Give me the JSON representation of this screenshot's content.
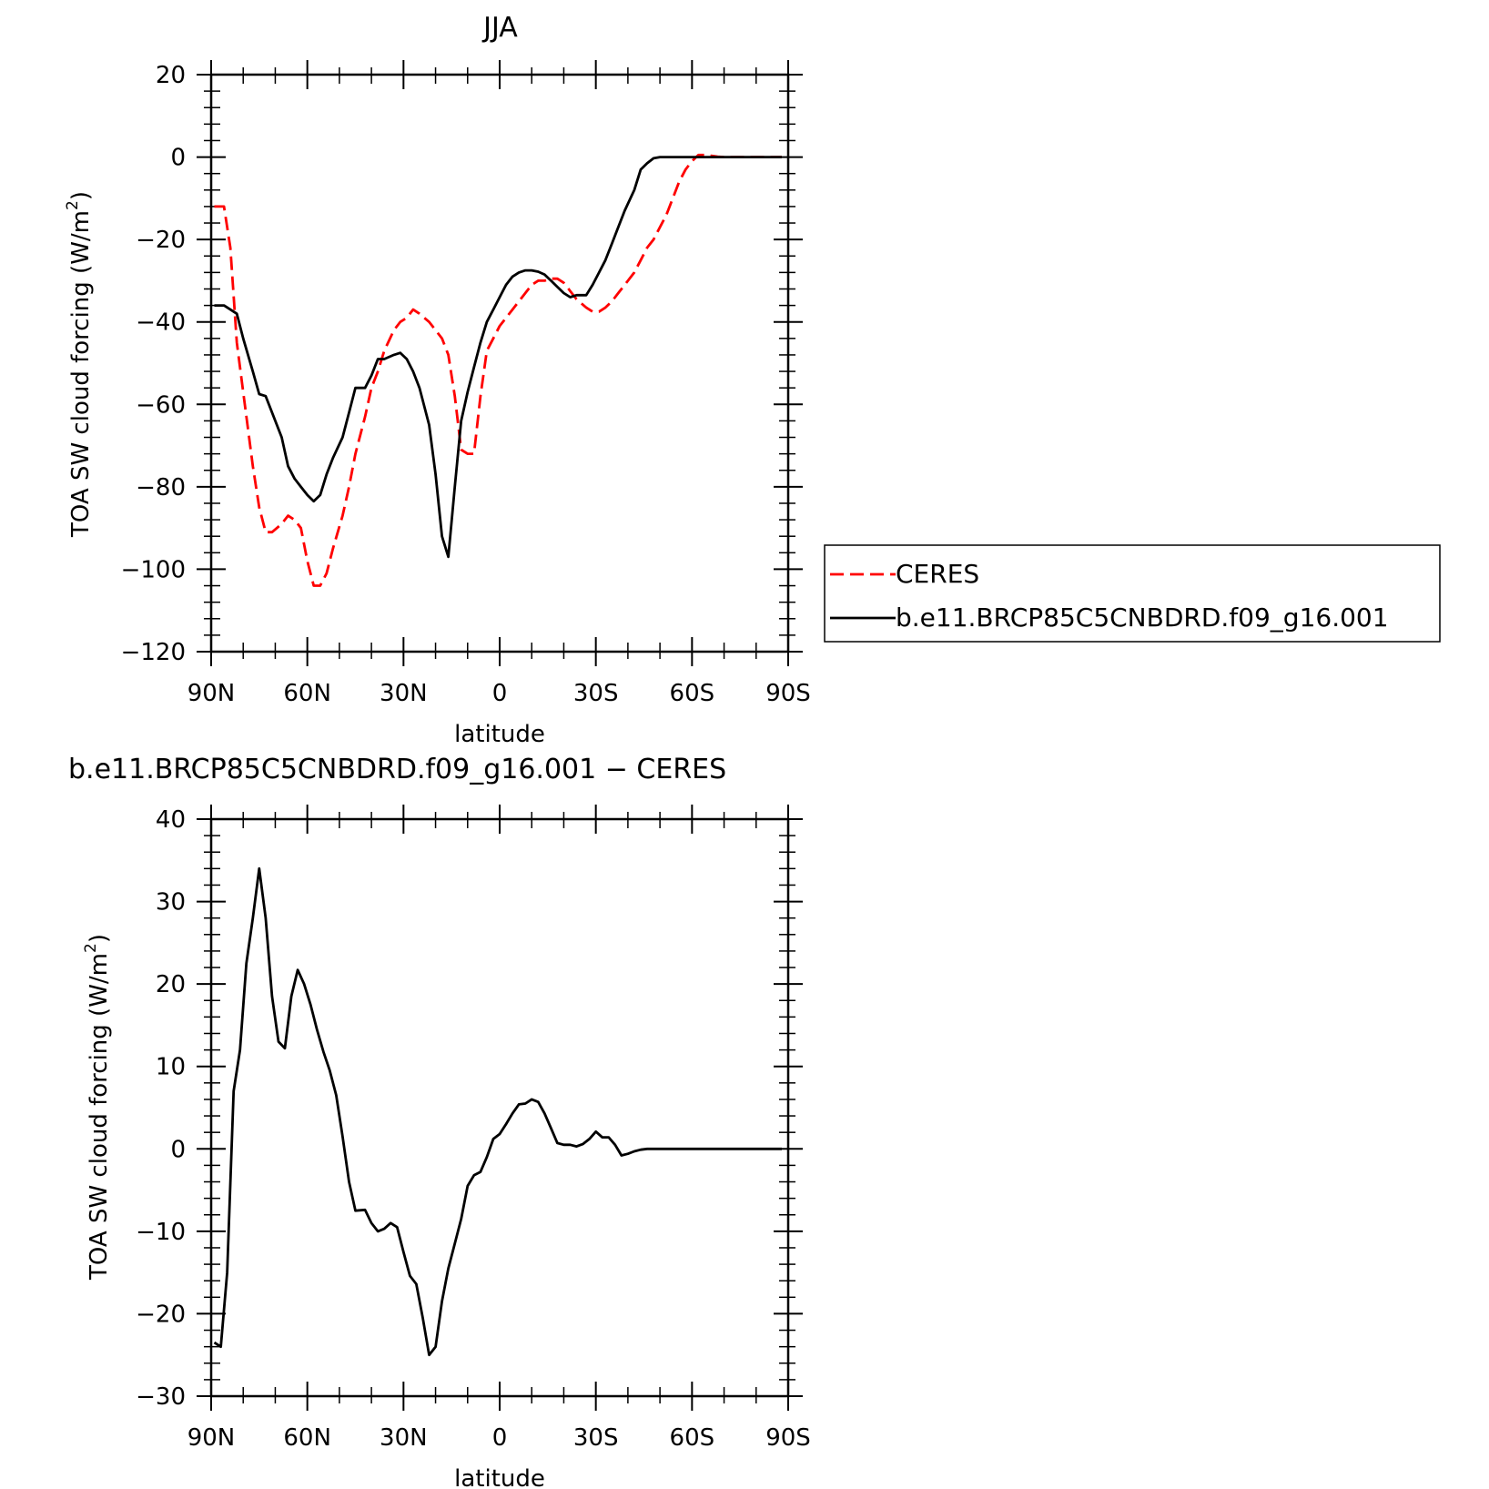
{
  "chart_data": [
    {
      "type": "line",
      "title": "JJA",
      "xlabel": "latitude",
      "ylabel_main": "TOA SW cloud forcing (W/m",
      "ylabel_sup": "2",
      "ylabel_close": ")",
      "ylim": [
        -120,
        20
      ],
      "ytick_step": 20,
      "yticks": [
        "20",
        "0",
        "−20",
        "−40",
        "−60",
        "−80",
        "−100",
        "−120"
      ],
      "xlim": [
        90,
        -90
      ],
      "xticks": [
        {
          "value": 90,
          "label": "90N"
        },
        {
          "value": 60,
          "label": "60N"
        },
        {
          "value": 30,
          "label": "30N"
        },
        {
          "value": 0,
          "label": "0"
        },
        {
          "value": -30,
          "label": "30S"
        },
        {
          "value": -60,
          "label": "60S"
        },
        {
          "value": -90,
          "label": "90S"
        }
      ],
      "legend": {
        "placement": "right-outside"
      },
      "series": [
        {
          "name": "CERES",
          "color": "#ff0000",
          "dash": true,
          "x": [
            89,
            86,
            84,
            82,
            80,
            77,
            75,
            73,
            71,
            68,
            66,
            64,
            62,
            60,
            58,
            56,
            54,
            52,
            49,
            47,
            45,
            42,
            40,
            38,
            36,
            33,
            31,
            29,
            27,
            25,
            22,
            20,
            18,
            16,
            14,
            12,
            10,
            8,
            6,
            4,
            2,
            0,
            -2,
            -4,
            -6,
            -8,
            -10,
            -12,
            -14,
            -16,
            -18,
            -20,
            -22,
            -24,
            -27,
            -29,
            -31,
            -33,
            -35,
            -37,
            -39,
            -42,
            -44,
            -46,
            -48,
            -50,
            -52,
            -54,
            -56,
            -58,
            -60,
            -62,
            -64,
            -66,
            -68,
            -70,
            -72,
            -74,
            -76,
            -78,
            -80,
            -82,
            -84,
            -86,
            -88
          ],
          "y": [
            -12,
            -12,
            -22,
            -45,
            -57,
            -75,
            -85,
            -91,
            -91,
            -89,
            -87,
            -88,
            -90,
            -98,
            -104,
            -104,
            -101,
            -95,
            -87,
            -80,
            -72,
            -63,
            -56,
            -52,
            -47,
            -42,
            -40,
            -39,
            -37,
            -38,
            -40,
            -42,
            -44,
            -48,
            -58,
            -71,
            -72,
            -72,
            -58,
            -47,
            -44,
            -41,
            -39,
            -37,
            -35,
            -33,
            -31,
            -30,
            -30,
            -29.5,
            -29.5,
            -30.5,
            -32.5,
            -34.5,
            -36.5,
            -37.5,
            -37.5,
            -36.5,
            -35,
            -33,
            -31,
            -28,
            -25,
            -22,
            -20,
            -17,
            -14,
            -10,
            -6,
            -3,
            -1,
            0.5,
            0.5,
            0.3,
            0.1,
            0,
            0,
            0,
            0,
            0,
            0,
            0,
            0,
            0,
            0
          ]
        },
        {
          "name": "b.e11.BRCP85C5CNBDRD.f09_g16.001",
          "color": "#000000",
          "dash": false,
          "x": [
            89,
            86,
            84,
            82,
            80,
            77,
            75,
            73,
            71,
            68,
            66,
            64,
            62,
            60,
            58,
            56,
            54,
            52,
            49,
            47,
            45,
            42,
            40,
            38,
            36,
            33,
            31,
            29,
            27,
            25,
            22,
            20,
            18,
            16,
            14,
            12,
            10,
            8,
            6,
            4,
            2,
            0,
            -2,
            -4,
            -6,
            -8,
            -10,
            -12,
            -14,
            -16,
            -18,
            -20,
            -22,
            -24,
            -27,
            -29,
            -31,
            -33,
            -35,
            -37,
            -39,
            -42,
            -44,
            -46,
            -48,
            -50,
            -52,
            -54,
            -56,
            -58,
            -60,
            -62,
            -64,
            -66,
            -68,
            -70,
            -72,
            -74,
            -76,
            -78,
            -80,
            -82,
            -84,
            -86,
            -88
          ],
          "y": [
            -36,
            -36,
            -37,
            -38,
            -44,
            -52,
            -57.5,
            -58,
            -62,
            -68,
            -75,
            -78,
            -80,
            -82,
            -83.5,
            -82,
            -77,
            -73,
            -68,
            -62,
            -56,
            -56,
            -53,
            -49,
            -49,
            -48,
            -47.5,
            -49,
            -52,
            -56,
            -65,
            -77,
            -92,
            -97,
            -80,
            -64,
            -57,
            -51,
            -45,
            -40,
            -37,
            -34,
            -31,
            -29,
            -28,
            -27.5,
            -27.5,
            -27.8,
            -28.5,
            -30,
            -31.5,
            -33,
            -34,
            -33.5,
            -33.5,
            -31,
            -28,
            -25,
            -21,
            -17,
            -13,
            -8,
            -3,
            -1.5,
            -0.3,
            0,
            0,
            0,
            0,
            0,
            0,
            0,
            0,
            0,
            0,
            0,
            0,
            0,
            0,
            0,
            0,
            0,
            0,
            0,
            0
          ]
        }
      ]
    },
    {
      "type": "line",
      "title": "b.e11.BRCP85C5CNBDRD.f09_g16.001 − CERES",
      "xlabel": "latitude",
      "ylabel_main": "TOA SW cloud forcing (W/m",
      "ylabel_sup": "2",
      "ylabel_close": ")",
      "ylim": [
        -30,
        40
      ],
      "ytick_step": 10,
      "yticks": [
        "40",
        "30",
        "20",
        "10",
        "0",
        "−10",
        "−20",
        "−30"
      ],
      "xlim": [
        90,
        -90
      ],
      "xticks": [
        {
          "value": 90,
          "label": "90N"
        },
        {
          "value": 60,
          "label": "60N"
        },
        {
          "value": 30,
          "label": "30N"
        },
        {
          "value": 0,
          "label": "0"
        },
        {
          "value": -30,
          "label": "30S"
        },
        {
          "value": -60,
          "label": "60S"
        },
        {
          "value": -90,
          "label": "90S"
        }
      ],
      "series": [
        {
          "color": "#000000",
          "dash": false,
          "x": [
            89,
            87,
            85,
            83,
            81,
            79,
            77,
            75,
            73,
            71,
            69,
            67,
            65,
            63,
            61,
            59,
            57,
            55,
            53,
            51,
            49,
            47,
            45,
            42,
            40,
            38,
            36,
            34,
            32,
            30,
            28,
            26,
            24,
            22,
            20,
            18,
            16,
            14,
            12,
            10,
            8,
            6,
            4,
            2,
            0,
            -2,
            -4,
            -6,
            -8,
            -10,
            -12,
            -14,
            -16,
            -18,
            -20,
            -22,
            -24,
            -26,
            -28,
            -30,
            -32,
            -34,
            -36,
            -38,
            -40,
            -42,
            -44,
            -46,
            -48,
            -50,
            -52,
            -54,
            -56,
            -58,
            -60,
            -62,
            -64,
            -66,
            -68,
            -70,
            -72,
            -74,
            -76,
            -78,
            -80,
            -82,
            -84,
            -86,
            -88
          ],
          "y": [
            -23.5,
            -24,
            -15,
            7,
            12,
            22.5,
            28,
            34,
            28,
            18.5,
            13,
            12.2,
            18.5,
            21.7,
            20,
            17.5,
            14.5,
            11.8,
            9.5,
            6.5,
            1.5,
            -4,
            -7.5,
            -7.4,
            -9,
            -10,
            -9.7,
            -9,
            -9.5,
            -12.5,
            -15.4,
            -16.4,
            -20.5,
            -25,
            -24,
            -18.5,
            -14.5,
            -11.5,
            -8.5,
            -4.5,
            -3.2,
            -2.8,
            -1,
            1.2,
            1.8,
            3,
            4.3,
            5.4,
            5.5,
            6,
            5.7,
            4.3,
            2.5,
            0.7,
            0.5,
            0.5,
            0.3,
            0.6,
            1.2,
            2.1,
            1.4,
            1.4,
            0.5,
            -0.8,
            -0.6,
            -0.3,
            -0.1,
            0,
            0,
            0,
            0,
            0,
            0,
            0,
            0,
            0,
            0,
            0,
            0,
            0,
            0,
            0,
            0,
            0,
            0,
            0,
            0,
            0,
            0
          ]
        }
      ]
    }
  ]
}
